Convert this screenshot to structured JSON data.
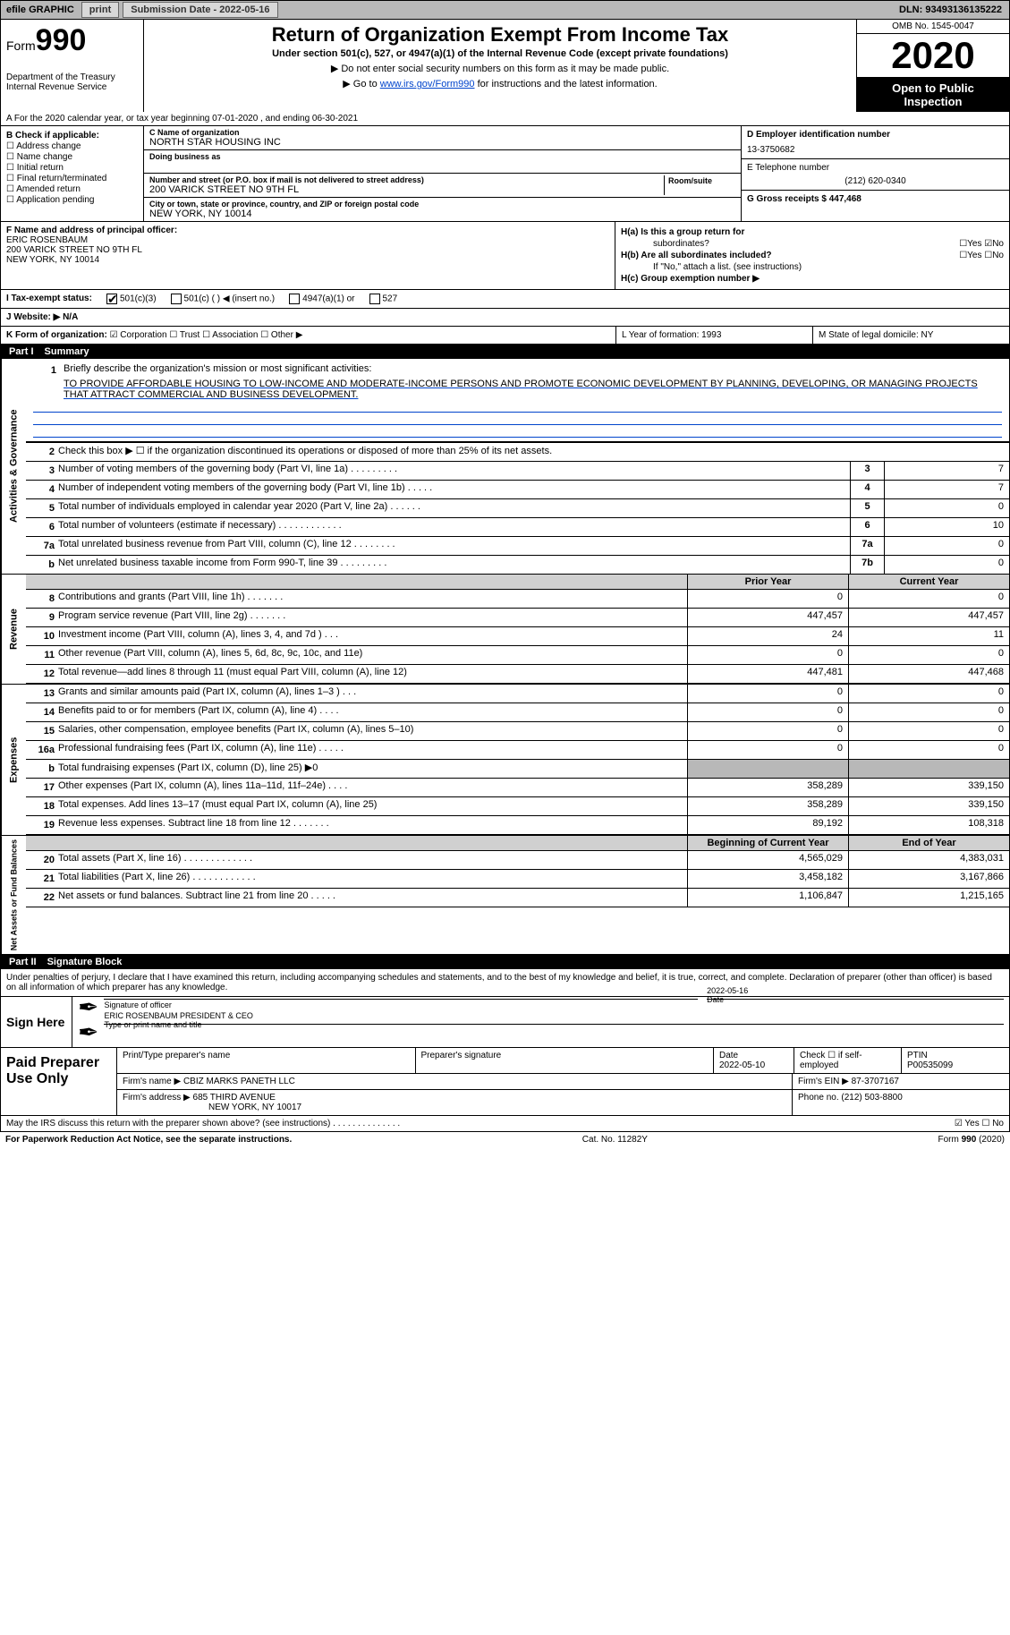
{
  "topbar": {
    "efile_label": "efile GRAPHIC",
    "print_btn": "print",
    "submission_label": "Submission Date - 2022-05-16",
    "dln": "DLN: 93493136135222"
  },
  "header": {
    "form_prefix": "Form",
    "form_number": "990",
    "title": "Return of Organization Exempt From Income Tax",
    "subtitle": "Under section 501(c), 527, or 4947(a)(1) of the Internal Revenue Code (except private foundations)",
    "note1": "▶ Do not enter social security numbers on this form as it may be made public.",
    "note2_prefix": "▶ Go to ",
    "note2_link": "www.irs.gov/Form990",
    "note2_suffix": " for instructions and the latest information.",
    "dept1": "Department of the Treasury",
    "dept2": "Internal Revenue Service",
    "omb": "OMB No. 1545-0047",
    "year": "2020",
    "open1": "Open to Public",
    "open2": "Inspection"
  },
  "lineA": "A For the 2020 calendar year, or tax year beginning 07-01-2020    , and ending 06-30-2021",
  "sectionB": {
    "b_title": "B Check if applicable:",
    "b_items": [
      "☐ Address change",
      "☐ Name change",
      "☐ Initial return",
      "☐ Final return/terminated",
      "☐ Amended return",
      "☐ Application pending"
    ],
    "c_label": "C Name of organization",
    "c_name": "NORTH STAR HOUSING INC",
    "dba_label": "Doing business as",
    "addr_label": "Number and street (or P.O. box if mail is not delivered to street address)",
    "room_label": "Room/suite",
    "addr": "200 VARICK STREET NO 9TH FL",
    "city_label": "City or town, state or province, country, and ZIP or foreign postal code",
    "city": "NEW YORK, NY  10014",
    "d_label": "D Employer identification number",
    "d_val": "13-3750682",
    "e_label": "E Telephone number",
    "e_val": "(212) 620-0340",
    "g_label": "G Gross receipts $ 447,468"
  },
  "sectionF": {
    "f_label": "F Name and address of principal officer:",
    "f_name": "ERIC ROSENBAUM",
    "f_addr1": "200 VARICK STREET NO 9TH FL",
    "f_addr2": "NEW YORK, NY  10014"
  },
  "sectionH": {
    "ha_label": "H(a)  Is this a group return for",
    "ha_sub": "subordinates?",
    "ha_yes": "☐Yes ☑No",
    "hb_label": "H(b)  Are all subordinates included?",
    "hb_yes": "☐Yes ☐No",
    "hb_note": "If \"No,\" attach a list. (see instructions)",
    "hc_label": "H(c)  Group exemption number ▶"
  },
  "lineI": {
    "label": "I   Tax-exempt status:",
    "opt1": "501(c)(3)",
    "opt2": "501(c) (  ) ◀ (insert no.)",
    "opt3": "4947(a)(1) or",
    "opt4": "527"
  },
  "lineJ": "J   Website: ▶   N/A",
  "lineK": {
    "left_label": "K Form of organization:",
    "opts": "☑ Corporation  ☐ Trust  ☐ Association  ☐ Other ▶",
    "l_label": "L Year of formation: 1993",
    "m_label": "M State of legal domicile: NY"
  },
  "part1": {
    "pn": "Part I",
    "pt": "Summary"
  },
  "part2": {
    "pn": "Part II",
    "pt": "Signature Block"
  },
  "mission": {
    "n": "1",
    "label": "Briefly describe the organization's mission or most significant activities:",
    "text": "TO PROVIDE AFFORDABLE HOUSING TO LOW-INCOME AND MODERATE-INCOME PERSONS AND PROMOTE ECONOMIC DEVELOPMENT BY PLANNING, DEVELOPING, OR MANAGING PROJECTS THAT ATTRACT COMMERCIAL AND BUSINESS DEVELOPMENT."
  },
  "gov_lines": [
    {
      "n": "2",
      "label": "Check this box ▶ ☐  if the organization discontinued its operations or disposed of more than 25% of its net assets.",
      "nlabel": "",
      "val": ""
    },
    {
      "n": "3",
      "label": "Number of voting members of the governing body (Part VI, line 1a)   .    .    .    .    .    .    .    .    .",
      "nlabel": "3",
      "val": "7"
    },
    {
      "n": "4",
      "label": "Number of independent voting members of the governing body (Part VI, line 1b)   .    .    .    .    .",
      "nlabel": "4",
      "val": "7"
    },
    {
      "n": "5",
      "label": "Total number of individuals employed in calendar year 2020 (Part V, line 2a)   .    .    .    .    .    .",
      "nlabel": "5",
      "val": "0"
    },
    {
      "n": "6",
      "label": "Total number of volunteers (estimate if necessary)   .    .    .    .    .    .    .    .    .    .    .    .",
      "nlabel": "6",
      "val": "10"
    },
    {
      "n": "7a",
      "label": "Total unrelated business revenue from Part VIII, column (C), line 12   .    .    .    .    .    .    .    .",
      "nlabel": "7a",
      "val": "0"
    },
    {
      "n": "b",
      "label": "Net unrelated business taxable income from Form 990-T, line 39   .    .    .    .    .    .    .    .    .",
      "nlabel": "7b",
      "val": "0"
    }
  ],
  "two_col_hdr": {
    "c1": "Prior Year",
    "c2": "Current Year"
  },
  "revenue": [
    {
      "n": "8",
      "label": "Contributions and grants (Part VIII, line 1h)   .    .    .    .    .    .    .",
      "c1": "0",
      "c2": "0"
    },
    {
      "n": "9",
      "label": "Program service revenue (Part VIII, line 2g)   .    .    .    .    .    .    .",
      "c1": "447,457",
      "c2": "447,457"
    },
    {
      "n": "10",
      "label": "Investment income (Part VIII, column (A), lines 3, 4, and 7d )   .    .    .",
      "c1": "24",
      "c2": "11"
    },
    {
      "n": "11",
      "label": "Other revenue (Part VIII, column (A), lines 5, 6d, 8c, 9c, 10c, and 11e)",
      "c1": "0",
      "c2": "0"
    },
    {
      "n": "12",
      "label": "Total revenue—add lines 8 through 11 (must equal Part VIII, column (A), line 12)",
      "c1": "447,481",
      "c2": "447,468"
    }
  ],
  "expenses": [
    {
      "n": "13",
      "label": "Grants and similar amounts paid (Part IX, column (A), lines 1–3 )   .    .    .",
      "c1": "0",
      "c2": "0"
    },
    {
      "n": "14",
      "label": "Benefits paid to or for members (Part IX, column (A), line 4)   .    .    .    .",
      "c1": "0",
      "c2": "0"
    },
    {
      "n": "15",
      "label": "Salaries, other compensation, employee benefits (Part IX, column (A), lines 5–10)",
      "c1": "0",
      "c2": "0"
    },
    {
      "n": "16a",
      "label": "Professional fundraising fees (Part IX, column (A), line 11e)   .    .    .    .    .",
      "c1": "0",
      "c2": "0"
    },
    {
      "n": "b",
      "label": "Total fundraising expenses (Part IX, column (D), line 25) ▶0",
      "c1": "",
      "c2": "",
      "shaded": true
    },
    {
      "n": "17",
      "label": "Other expenses (Part IX, column (A), lines 11a–11d, 11f–24e)   .    .    .    .",
      "c1": "358,289",
      "c2": "339,150"
    },
    {
      "n": "18",
      "label": "Total expenses. Add lines 13–17 (must equal Part IX, column (A), line 25)",
      "c1": "358,289",
      "c2": "339,150"
    },
    {
      "n": "19",
      "label": "Revenue less expenses. Subtract line 18 from line 12   .    .    .    .    .    .    .",
      "c1": "89,192",
      "c2": "108,318"
    }
  ],
  "net_hdr": {
    "c1": "Beginning of Current Year",
    "c2": "End of Year"
  },
  "netassets": [
    {
      "n": "20",
      "label": "Total assets (Part X, line 16)   .    .    .    .    .    .    .    .    .    .    .    .    .",
      "c1": "4,565,029",
      "c2": "4,383,031"
    },
    {
      "n": "21",
      "label": "Total liabilities (Part X, line 26)   .    .    .    .    .    .    .    .    .    .    .    .",
      "c1": "3,458,182",
      "c2": "3,167,866"
    },
    {
      "n": "22",
      "label": "Net assets or fund balances. Subtract line 21 from line 20   .    .    .    .    .",
      "c1": "1,106,847",
      "c2": "1,215,165"
    }
  ],
  "vtabs": {
    "gov": "Activities & Governance",
    "rev": "Revenue",
    "exp": "Expenses",
    "net": "Net Assets or Fund Balances"
  },
  "sig": {
    "decl": "Under penalties of perjury, I declare that I have examined this return, including accompanying schedules and statements, and to the best of my knowledge and belief, it is true, correct, and complete. Declaration of preparer (other than officer) is based on all information of which preparer has any knowledge.",
    "sign_here": "Sign Here",
    "sig_officer_label": "Signature of officer",
    "date_label": "Date",
    "sig_date": "2022-05-16",
    "name_title": "ERIC ROSENBAUM  PRESIDENT & CEO",
    "name_label": "Type or print name and title"
  },
  "prep": {
    "left": "Paid Preparer Use Only",
    "h1": "Print/Type preparer's name",
    "h2": "Preparer's signature",
    "h3_label": "Date",
    "h3": "2022-05-10",
    "h4": "Check ☐ if self-employed",
    "h5_label": "PTIN",
    "h5": "P00535099",
    "firm_name_label": "Firm's name    ▶",
    "firm_name": "CBIZ MARKS PANETH LLC",
    "firm_ein_label": "Firm's EIN ▶",
    "firm_ein": "87-3707167",
    "firm_addr_label": "Firm's address ▶",
    "firm_addr1": "685 THIRD AVENUE",
    "firm_addr2": "NEW YORK, NY  10017",
    "phone_label": "Phone no.",
    "phone": "(212) 503-8800"
  },
  "discuss": {
    "q": "May the IRS discuss this return with the preparer shown above? (see instructions)    .    .    .    .    .    .    .    .    .    .    .    .    .    .",
    "a": "☑ Yes  ☐ No"
  },
  "footer": {
    "left": "For Paperwork Reduction Act Notice, see the separate instructions.",
    "mid": "Cat. No. 11282Y",
    "right": "Form 990 (2020)"
  }
}
